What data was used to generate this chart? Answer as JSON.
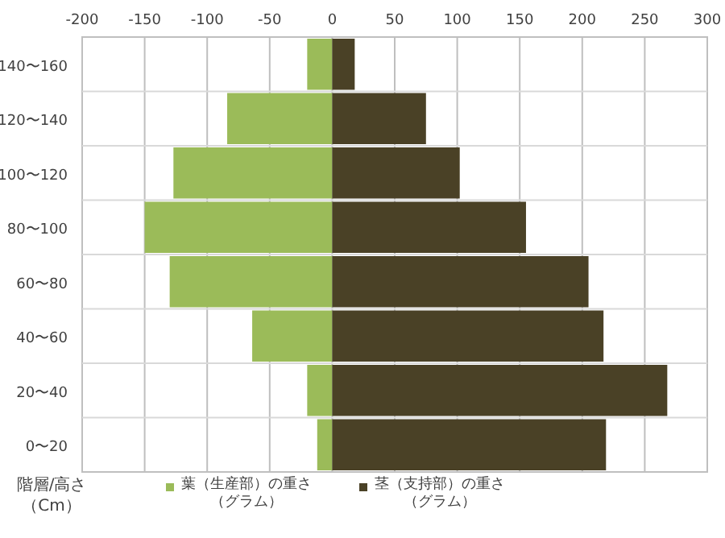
{
  "chart_data": {
    "type": "bar",
    "orientation": "horizontal",
    "stacked": true,
    "ylabel": "階層/高さ（Cm）",
    "categories": [
      "140〜160",
      "120〜140",
      "100〜120",
      "80〜100",
      "60〜80",
      "40〜60",
      "20〜40",
      "0〜20"
    ],
    "series": [
      {
        "name": "葉（生産部）の重さ（グラム）",
        "color": "#9bbb59",
        "values": [
          -20,
          -84,
          -127,
          -150,
          -130,
          -64,
          -20,
          -12
        ]
      },
      {
        "name": "茎（支持部）の重さ（グラム）",
        "color": "#4a4126",
        "values": [
          18,
          75,
          102,
          155,
          205,
          217,
          268,
          219
        ]
      }
    ],
    "xlim": [
      -200,
      300
    ],
    "xticks": [
      -200,
      -150,
      -100,
      -50,
      0,
      50,
      100,
      150,
      200,
      250,
      300
    ],
    "grid": true,
    "legend": "bottom"
  }
}
